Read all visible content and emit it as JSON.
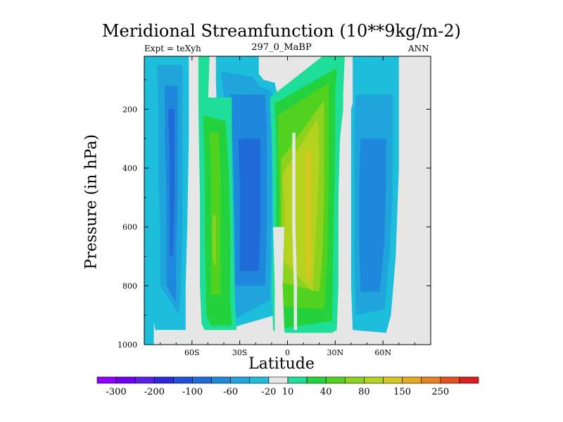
{
  "header": {
    "title": "Meridional Streamfunction (10**9kg/m-2)",
    "left": "Expt = teXyh",
    "center": "297_0_MaBP",
    "right": "ANN"
  },
  "chart_data": {
    "type": "heatmap",
    "title": "Meridional Streamfunction (10**9kg/m-2)",
    "xlabel": "Latitude",
    "ylabel": "Pressure (in hPa)",
    "xlim": [
      -90,
      90
    ],
    "ylim": [
      1000,
      0
    ],
    "x_ticks": [
      {
        "value": -60,
        "label": "60S"
      },
      {
        "value": -30,
        "label": "30S"
      },
      {
        "value": 0,
        "label": "0"
      },
      {
        "value": 30,
        "label": "30N"
      },
      {
        "value": 60,
        "label": "60N"
      }
    ],
    "y_ticks": [
      {
        "value": 200,
        "label": "200"
      },
      {
        "value": 400,
        "label": "400"
      },
      {
        "value": 600,
        "label": "600"
      },
      {
        "value": 800,
        "label": "800"
      },
      {
        "value": 1000,
        "label": "1000"
      }
    ],
    "pressure_top": 20,
    "missing_color": "#e6e6e6",
    "colorbar": {
      "colors": [
        "#8c00ff",
        "#7000f0",
        "#5a1ee6",
        "#2d28dc",
        "#2050dc",
        "#1f6cd8",
        "#1e88dc",
        "#20a4dc",
        "#1dbedc",
        "#e6e6e6",
        "#1ede9a",
        "#23d23c",
        "#50d21e",
        "#8cd21e",
        "#b4d21e",
        "#d2c81e",
        "#e6aa1e",
        "#e6821e",
        "#e6501e",
        "#dc1e1e"
      ],
      "labels": [
        {
          "index": 1,
          "label": "-300"
        },
        {
          "index": 3,
          "label": "-200"
        },
        {
          "index": 5,
          "label": "-100"
        },
        {
          "index": 7,
          "label": "-60"
        },
        {
          "index": 9,
          "label": "-20"
        },
        {
          "index": 10,
          "label": "10"
        },
        {
          "index": 12,
          "label": "40"
        },
        {
          "index": 14,
          "label": "80"
        },
        {
          "index": 16,
          "label": "150"
        },
        {
          "index": 18,
          "label": "250"
        }
      ]
    },
    "contours": [
      {
        "color": "#1dbedc",
        "left": [
          [
            -90,
            20
          ],
          [
            -90,
            1000
          ],
          [
            -84,
            1000
          ],
          [
            -84,
            20
          ]
        ],
        "right": []
      },
      {
        "color": "#1dbedc",
        "left": [
          [
            -88,
            20
          ],
          [
            -88,
            300
          ],
          [
            -87,
            600
          ],
          [
            -86,
            800
          ],
          [
            -85,
            900
          ],
          [
            -83,
            950
          ]
        ],
        "right": [
          [
            -62,
            20
          ],
          [
            -62,
            300
          ],
          [
            -63,
            600
          ],
          [
            -64,
            800
          ],
          [
            -64,
            950
          ]
        ]
      },
      {
        "color": "#20a4dc",
        "left": [
          [
            -82,
            50
          ],
          [
            -81,
            200
          ],
          [
            -81,
            450
          ],
          [
            -80,
            600
          ],
          [
            -80,
            800
          ]
        ],
        "right": [
          [
            -66,
            50
          ],
          [
            -66,
            300
          ],
          [
            -66,
            600
          ],
          [
            -67,
            800
          ],
          [
            -68,
            900
          ]
        ]
      },
      {
        "color": "#1e88dc",
        "left": [
          [
            -77,
            120
          ],
          [
            -77,
            300
          ],
          [
            -76,
            500
          ],
          [
            -76,
            600
          ],
          [
            -76,
            800
          ]
        ],
        "right": [
          [
            -69,
            120
          ],
          [
            -69,
            300
          ],
          [
            -69,
            500
          ],
          [
            -70,
            700
          ],
          [
            -70,
            860
          ]
        ]
      },
      {
        "color": "#1f6cd8",
        "left": [
          [
            -75,
            200
          ],
          [
            -74,
            350
          ],
          [
            -74,
            500
          ],
          [
            -74,
            700
          ]
        ],
        "right": [
          [
            -71,
            200
          ],
          [
            -71,
            350
          ],
          [
            -71,
            500
          ],
          [
            -72,
            700
          ]
        ]
      },
      {
        "color": "#1dbedc",
        "left": [
          [
            -45,
            20
          ],
          [
            -45,
            100
          ],
          [
            -44,
            300
          ],
          [
            -43,
            600
          ],
          [
            -42,
            800
          ],
          [
            -40,
            950
          ]
        ],
        "right": [
          [
            -18,
            20
          ],
          [
            -18,
            80
          ],
          [
            -15,
            100
          ],
          [
            -8,
            110
          ],
          [
            -6,
            160
          ],
          [
            -7,
            400
          ],
          [
            -8,
            700
          ],
          [
            -8,
            900
          ]
        ]
      },
      {
        "color": "#20a4dc",
        "left": [
          [
            -42,
            70
          ],
          [
            -40,
            150
          ],
          [
            -39,
            300
          ],
          [
            -38,
            600
          ],
          [
            -37,
            800
          ],
          [
            -36,
            920
          ]
        ],
        "right": [
          [
            -22,
            90
          ],
          [
            -18,
            120
          ],
          [
            -10,
            140
          ],
          [
            -9,
            200
          ],
          [
            -9,
            400
          ],
          [
            -10,
            600
          ],
          [
            -11,
            850
          ]
        ]
      },
      {
        "color": "#1e88dc",
        "left": [
          [
            -36,
            150
          ],
          [
            -35,
            250
          ],
          [
            -34,
            400
          ],
          [
            -33,
            600
          ],
          [
            -33,
            800
          ]
        ],
        "right": [
          [
            -14,
            150
          ],
          [
            -13,
            250
          ],
          [
            -13,
            400
          ],
          [
            -13,
            600
          ],
          [
            -14,
            800
          ]
        ]
      },
      {
        "color": "#1f6cd8",
        "left": [
          [
            -31,
            300
          ],
          [
            -30,
            450
          ],
          [
            -30,
            600
          ],
          [
            -30,
            750
          ]
        ],
        "right": [
          [
            -17,
            300
          ],
          [
            -17,
            450
          ],
          [
            -17,
            600
          ],
          [
            -18,
            750
          ]
        ]
      },
      {
        "color": "#1dbedc",
        "left": [
          [
            41,
            20
          ],
          [
            41,
            180
          ],
          [
            40,
            200
          ],
          [
            40,
            400
          ],
          [
            40,
            600
          ],
          [
            40,
            800
          ],
          [
            41,
            950
          ]
        ],
        "right": [
          [
            70,
            20
          ],
          [
            70,
            200
          ],
          [
            70,
            400
          ],
          [
            68,
            700
          ],
          [
            65,
            900
          ],
          [
            62,
            960
          ]
        ]
      },
      {
        "color": "#20a4dc",
        "left": [
          [
            43,
            150
          ],
          [
            42,
            250
          ],
          [
            42,
            450
          ],
          [
            42,
            700
          ],
          [
            43,
            900
          ]
        ],
        "right": [
          [
            66,
            150
          ],
          [
            66,
            300
          ],
          [
            66,
            500
          ],
          [
            64,
            700
          ],
          [
            61,
            880
          ]
        ]
      },
      {
        "color": "#1e88dc",
        "left": [
          [
            46,
            300
          ],
          [
            45,
            450
          ],
          [
            45,
            650
          ],
          [
            46,
            820
          ]
        ],
        "right": [
          [
            62,
            300
          ],
          [
            62,
            450
          ],
          [
            61,
            650
          ],
          [
            58,
            820
          ]
        ]
      },
      {
        "color": "#1ede9a",
        "left": [
          [
            -56,
            20
          ],
          [
            -56,
            200
          ],
          [
            -55,
            500
          ],
          [
            -55,
            800
          ],
          [
            -54,
            930
          ],
          [
            -52,
            950
          ]
        ],
        "right": [
          [
            -49,
            20
          ],
          [
            -50,
            200
          ],
          [
            -50,
            500
          ],
          [
            -49,
            700
          ],
          [
            -48,
            900
          ],
          [
            -47,
            950
          ]
        ]
      },
      {
        "color": "#1ede9a",
        "left": [
          [
            -54,
            160
          ],
          [
            -54,
            300
          ],
          [
            -53,
            600
          ],
          [
            -53,
            800
          ],
          [
            -50,
            950
          ]
        ],
        "right": [
          [
            -35,
            160
          ],
          [
            -35,
            300
          ],
          [
            -34,
            600
          ],
          [
            -33,
            850
          ],
          [
            -32,
            950
          ]
        ]
      },
      {
        "color": "#23d23c",
        "left": [
          [
            -53,
            220
          ],
          [
            -52,
            400
          ],
          [
            -52,
            600
          ],
          [
            -51,
            900
          ],
          [
            -48,
            935
          ]
        ],
        "right": [
          [
            -39,
            240
          ],
          [
            -37,
            400
          ],
          [
            -36,
            600
          ],
          [
            -36,
            850
          ],
          [
            -35,
            935
          ]
        ]
      },
      {
        "color": "#50d21e",
        "left": [
          [
            -49,
            280
          ],
          [
            -48,
            450
          ],
          [
            -48,
            650
          ],
          [
            -48,
            830
          ]
        ],
        "right": [
          [
            -43,
            280
          ],
          [
            -42,
            450
          ],
          [
            -42,
            650
          ],
          [
            -42,
            830
          ]
        ]
      },
      {
        "color": "#8cd21e",
        "left": [
          [
            -47,
            560
          ],
          [
            -47,
            700
          ],
          [
            -46,
            730
          ]
        ],
        "right": [
          [
            -45,
            560
          ],
          [
            -45,
            700
          ],
          [
            -45,
            730
          ]
        ]
      },
      {
        "color": "#1ede9a",
        "left": [
          [
            -11,
            160
          ],
          [
            -10,
            300
          ],
          [
            -9,
            600
          ],
          [
            -10,
            800
          ],
          [
            -9,
            950
          ],
          [
            -7,
            960
          ]
        ],
        "right": [
          [
            22,
            20
          ],
          [
            36,
            20
          ],
          [
            35,
            150
          ],
          [
            35,
            200
          ],
          [
            33,
            300
          ],
          [
            32,
            500
          ],
          [
            32,
            800
          ],
          [
            31,
            950
          ],
          [
            28,
            960
          ]
        ]
      },
      {
        "color": "#23d23c",
        "left": [
          [
            -8,
            180
          ],
          [
            -7,
            300
          ],
          [
            -7,
            600
          ],
          [
            -7,
            880
          ],
          [
            -4,
            945
          ]
        ],
        "right": [
          [
            31,
            60
          ],
          [
            30,
            150
          ],
          [
            30,
            300
          ],
          [
            29,
            600
          ],
          [
            28,
            920
          ]
        ]
      },
      {
        "color": "#50d21e",
        "left": [
          [
            -6,
            220
          ],
          [
            -6,
            320
          ],
          [
            -5,
            500
          ],
          [
            -6,
            800
          ],
          [
            -3,
            870
          ]
        ],
        "right": [
          [
            26,
            110
          ],
          [
            26,
            200
          ],
          [
            26,
            400
          ],
          [
            25,
            700
          ],
          [
            23,
            880
          ]
        ]
      },
      {
        "color": "#8cd21e",
        "left": [
          [
            -4,
            370
          ],
          [
            -4,
            450
          ],
          [
            -4,
            700
          ],
          [
            -3,
            790
          ]
        ],
        "right": [
          [
            23,
            170
          ],
          [
            23,
            300
          ],
          [
            23,
            500
          ],
          [
            22,
            700
          ],
          [
            20,
            820
          ]
        ]
      },
      {
        "color": "#b4d21e",
        "left": [
          [
            -3,
            420
          ],
          [
            -2,
            520
          ],
          [
            -2,
            650
          ],
          [
            -2,
            720
          ]
        ],
        "right": [
          [
            19,
            230
          ],
          [
            20,
            350
          ],
          [
            19,
            500
          ],
          [
            17,
            700
          ],
          [
            16,
            820
          ]
        ]
      },
      {
        "color": "#d2c81e",
        "left": [
          [
            11,
            340
          ],
          [
            11,
            500
          ],
          [
            11,
            670
          ],
          [
            12,
            780
          ]
        ],
        "right": [
          [
            15,
            340
          ],
          [
            15,
            500
          ],
          [
            15,
            670
          ],
          [
            15,
            780
          ]
        ]
      }
    ],
    "white_channels": [
      {
        "left": [
          [
            -9,
            600
          ],
          [
            -8,
            800
          ],
          [
            -8,
            950
          ],
          [
            -7,
            980
          ]
        ],
        "right": [
          [
            -2,
            600
          ],
          [
            -3,
            800
          ],
          [
            -2,
            950
          ],
          [
            -1,
            980
          ]
        ]
      },
      {
        "left": [
          [
            3,
            280
          ],
          [
            3,
            400
          ],
          [
            3,
            600
          ],
          [
            4,
            800
          ],
          [
            4,
            950
          ]
        ],
        "right": [
          [
            5,
            280
          ],
          [
            5,
            400
          ],
          [
            5,
            600
          ],
          [
            6,
            800
          ],
          [
            6,
            950
          ]
        ]
      }
    ]
  }
}
